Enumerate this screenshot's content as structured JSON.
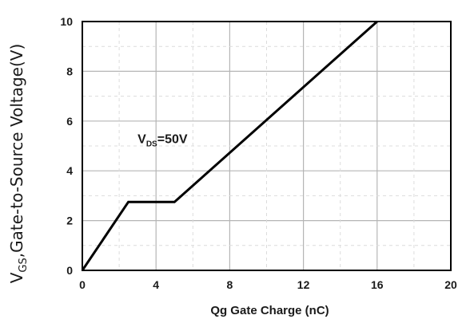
{
  "chart_data": {
    "type": "line",
    "title": "",
    "xlabel": "Qg Gate Charge (nC)",
    "ylabel": {
      "prefix": "V",
      "subscript": "GS",
      "rest": ",Gate-to-Source Voltage(V)"
    },
    "xlim": [
      0,
      20
    ],
    "ylim": [
      0,
      10
    ],
    "x_ticks": [
      "0",
      "4",
      "8",
      "12",
      "16",
      "20"
    ],
    "y_ticks": [
      "0",
      "2",
      "4",
      "6",
      "8",
      "10"
    ],
    "grid": true,
    "annotation": {
      "prefix": "V",
      "subscript": "DS",
      "rest": "=50V",
      "x": 3.0,
      "y": 5.3
    },
    "series": [
      {
        "x": [
          0,
          2.5,
          5.0,
          16.0
        ],
        "y": [
          0,
          2.75,
          2.75,
          10.0
        ]
      }
    ],
    "colors": {
      "line": "#000000",
      "grid": "#b5b5b5",
      "axis": "#000000"
    }
  }
}
